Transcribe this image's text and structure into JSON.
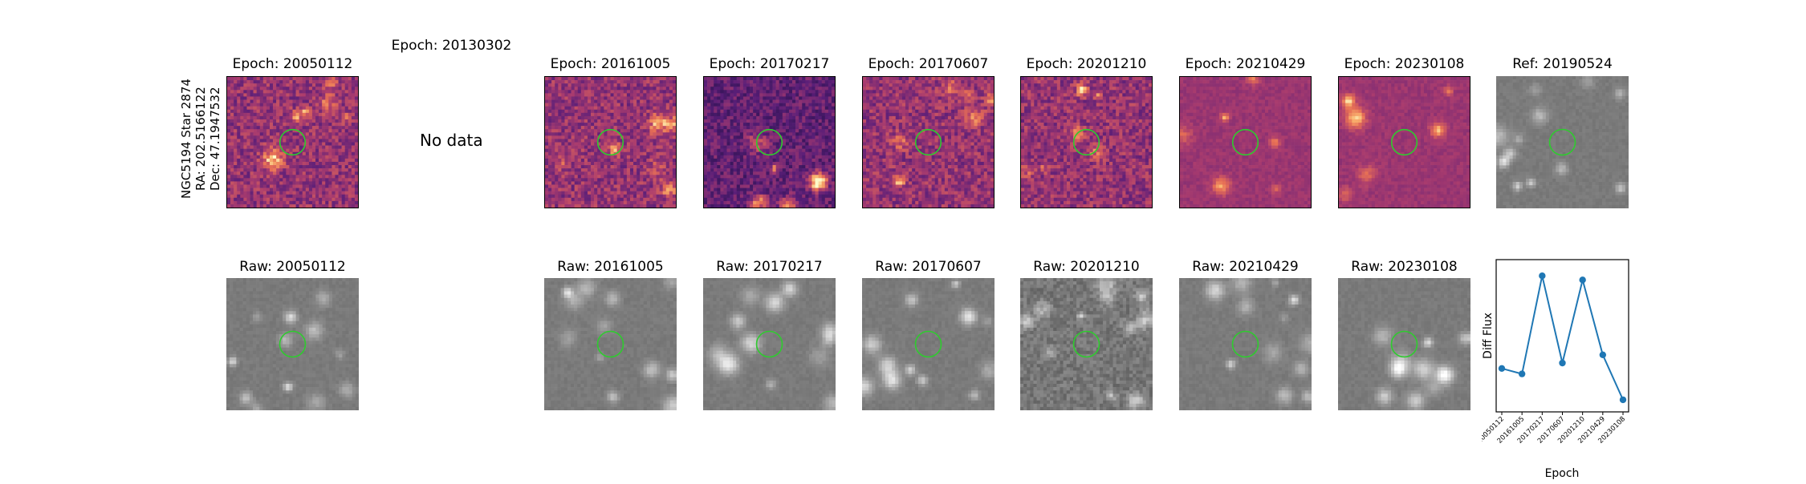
{
  "star_label": {
    "name": "NGC5194 Star 2874",
    "ra": "RA: 202.5166122",
    "dec": "Dec: 47.1947532"
  },
  "top_row": [
    {
      "title": "Epoch: 20050112",
      "kind": "diff",
      "has_data": true
    },
    {
      "title": "Epoch: 20130302",
      "kind": "diff",
      "has_data": false,
      "nodata_text": "No data"
    },
    {
      "title": "Epoch: 20161005",
      "kind": "diff",
      "has_data": true
    },
    {
      "title": "Epoch: 20170217",
      "kind": "diff",
      "has_data": true
    },
    {
      "title": "Epoch: 20170607",
      "kind": "diff",
      "has_data": true
    },
    {
      "title": "Epoch: 20201210",
      "kind": "diff",
      "has_data": true
    },
    {
      "title": "Epoch: 20210429",
      "kind": "diff",
      "has_data": true
    },
    {
      "title": "Epoch: 20230108",
      "kind": "diff",
      "has_data": true
    },
    {
      "title": "Ref: 20190524",
      "kind": "ref",
      "has_data": true
    }
  ],
  "bottom_row": [
    {
      "title": "Raw: 20050112"
    },
    {
      "title": "Raw: 20161005"
    },
    {
      "title": "Raw: 20170217"
    },
    {
      "title": "Raw: 20170607"
    },
    {
      "title": "Raw: 20201210"
    },
    {
      "title": "Raw: 20210429"
    },
    {
      "title": "Raw: 20230108"
    }
  ],
  "colors": {
    "aperture": "#2ecc2e",
    "series": "#1f77b4"
  },
  "chart_data": {
    "type": "line",
    "x": [
      "20050112",
      "20161005",
      "20170217",
      "20170607",
      "20201210",
      "20210429",
      "20230108"
    ],
    "series": [
      {
        "values": [
          0.26,
          0.22,
          0.94,
          0.3,
          0.91,
          0.36,
          0.03
        ]
      }
    ],
    "xlabel": "Epoch",
    "ylabel": "Diff Flux",
    "grid": false,
    "y_ticks_shown": false
  }
}
